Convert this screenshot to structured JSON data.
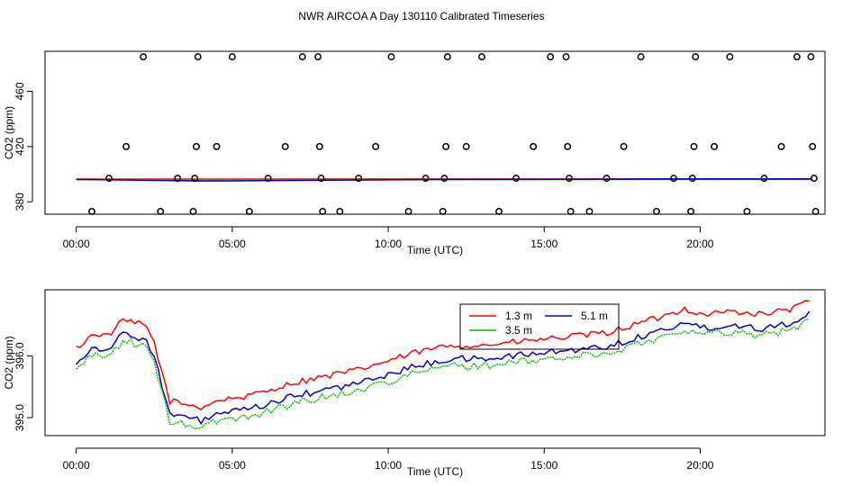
{
  "title": "NWR AIRCOA A  Day 130110  Calibrated Timeseries",
  "chart_data": [
    {
      "type": "scatter",
      "xlabel": "Time (UTC)",
      "ylabel": "CO2 (ppm)",
      "xlim": [
        -1.0,
        24.0
      ],
      "ylim": [
        371,
        489
      ],
      "xticks": [
        0,
        5,
        10,
        15,
        20
      ],
      "xtick_labels": [
        "00:00",
        "05:00",
        "10:00",
        "15:00",
        "20:00"
      ],
      "yticks": [
        380,
        420,
        460
      ],
      "ytick_labels": [
        "380",
        "420",
        "460"
      ],
      "calibration_points": [
        {
          "x": 0.5,
          "y": 373
        },
        {
          "x": 1.05,
          "y": 397
        },
        {
          "x": 1.6,
          "y": 420
        },
        {
          "x": 2.15,
          "y": 485
        },
        {
          "x": 2.7,
          "y": 373
        },
        {
          "x": 3.25,
          "y": 397
        },
        {
          "x": 3.75,
          "y": 373
        },
        {
          "x": 3.8,
          "y": 397
        },
        {
          "x": 3.85,
          "y": 420
        },
        {
          "x": 3.9,
          "y": 485
        },
        {
          "x": 4.5,
          "y": 420
        },
        {
          "x": 5.0,
          "y": 485
        },
        {
          "x": 5.55,
          "y": 373
        },
        {
          "x": 6.15,
          "y": 397
        },
        {
          "x": 6.7,
          "y": 420
        },
        {
          "x": 7.25,
          "y": 485
        },
        {
          "x": 7.75,
          "y": 485
        },
        {
          "x": 7.8,
          "y": 420
        },
        {
          "x": 7.85,
          "y": 397
        },
        {
          "x": 7.9,
          "y": 373
        },
        {
          "x": 8.45,
          "y": 373
        },
        {
          "x": 9.05,
          "y": 397
        },
        {
          "x": 9.6,
          "y": 420
        },
        {
          "x": 10.1,
          "y": 485
        },
        {
          "x": 10.65,
          "y": 373
        },
        {
          "x": 11.2,
          "y": 397
        },
        {
          "x": 11.75,
          "y": 373
        },
        {
          "x": 11.8,
          "y": 397
        },
        {
          "x": 11.85,
          "y": 420
        },
        {
          "x": 11.9,
          "y": 485
        },
        {
          "x": 12.5,
          "y": 420
        },
        {
          "x": 13.0,
          "y": 485
        },
        {
          "x": 13.55,
          "y": 373
        },
        {
          "x": 14.1,
          "y": 397
        },
        {
          "x": 14.65,
          "y": 420
        },
        {
          "x": 15.2,
          "y": 485
        },
        {
          "x": 15.7,
          "y": 485
        },
        {
          "x": 15.75,
          "y": 420
        },
        {
          "x": 15.8,
          "y": 397
        },
        {
          "x": 15.85,
          "y": 373
        },
        {
          "x": 16.45,
          "y": 373
        },
        {
          "x": 17.0,
          "y": 397
        },
        {
          "x": 17.55,
          "y": 420
        },
        {
          "x": 18.1,
          "y": 485
        },
        {
          "x": 18.6,
          "y": 373
        },
        {
          "x": 19.15,
          "y": 397
        },
        {
          "x": 19.7,
          "y": 373
        },
        {
          "x": 19.75,
          "y": 397
        },
        {
          "x": 19.8,
          "y": 420
        },
        {
          "x": 19.85,
          "y": 485
        },
        {
          "x": 20.45,
          "y": 420
        },
        {
          "x": 20.95,
          "y": 485
        },
        {
          "x": 21.5,
          "y": 373
        },
        {
          "x": 22.05,
          "y": 397
        },
        {
          "x": 22.6,
          "y": 420
        },
        {
          "x": 23.1,
          "y": 485
        },
        {
          "x": 23.55,
          "y": 485
        },
        {
          "x": 23.6,
          "y": 420
        },
        {
          "x": 23.65,
          "y": 397
        },
        {
          "x": 23.7,
          "y": 373
        }
      ],
      "series": [
        {
          "name": "1.3 m",
          "color": "#ff0000",
          "x": [
            0,
            23.6
          ],
          "y": [
            396.4,
            396.6
          ]
        },
        {
          "name": "3.5 m",
          "color": "#00bb00",
          "x": [
            0,
            23.6
          ],
          "y": [
            396.0,
            396.2
          ]
        },
        {
          "name": "5.1 m",
          "color": "#0000cc",
          "x": [
            0,
            4,
            8,
            12,
            16,
            20,
            23.6
          ],
          "y": [
            396.2,
            395.0,
            395.6,
            396.2,
            396.3,
            396.6,
            396.5
          ]
        }
      ]
    },
    {
      "type": "line",
      "xlabel": "Time (UTC)",
      "ylabel": "CO2 (ppm)",
      "xlim": [
        -1.0,
        24.0
      ],
      "ylim": [
        394.71,
        397.07
      ],
      "xticks": [
        0,
        5,
        10,
        15,
        20
      ],
      "xtick_labels": [
        "00:00",
        "05:00",
        "10:00",
        "15:00",
        "20:00"
      ],
      "yticks": [
        395.0,
        396.0
      ],
      "ytick_labels": [
        "395.0",
        "396.0"
      ],
      "legend": {
        "position": "top-center",
        "entries": [
          "1.3 m",
          "5.1 m",
          "3.5 m"
        ]
      },
      "series": [
        {
          "name": "1.3 m",
          "color": "#ff0000",
          "offset": 0.22,
          "noise": 0.05
        },
        {
          "name": "5.1 m",
          "color": "#0000cc",
          "offset": 0.0,
          "noise": 0.055
        },
        {
          "name": "3.5 m",
          "color": "#00bb00",
          "offset": -0.11,
          "noise": 0.06
        }
      ],
      "base_curve": {
        "x": [
          0,
          0.6,
          1.0,
          1.5,
          2.0,
          2.25,
          2.5,
          2.75,
          3.0,
          3.5,
          4.0,
          4.5,
          5.0,
          5.5,
          6.0,
          7.0,
          8.0,
          9.0,
          10.0,
          11.0,
          12.0,
          13.0,
          14.0,
          15.0,
          16.0,
          17.0,
          18.0,
          19.0,
          19.5,
          20.0,
          21.0,
          22.0,
          23.0,
          23.6
        ],
        "y": [
          395.9,
          396.15,
          396.1,
          396.35,
          396.3,
          396.25,
          396.0,
          395.5,
          395.05,
          395.0,
          394.95,
          395.05,
          395.1,
          395.12,
          395.2,
          395.35,
          395.45,
          395.55,
          395.7,
          395.85,
          395.95,
          395.95,
          396.0,
          396.05,
          396.1,
          396.15,
          396.3,
          396.45,
          396.55,
          396.45,
          396.5,
          396.45,
          396.55,
          396.7
        ]
      }
    }
  ]
}
